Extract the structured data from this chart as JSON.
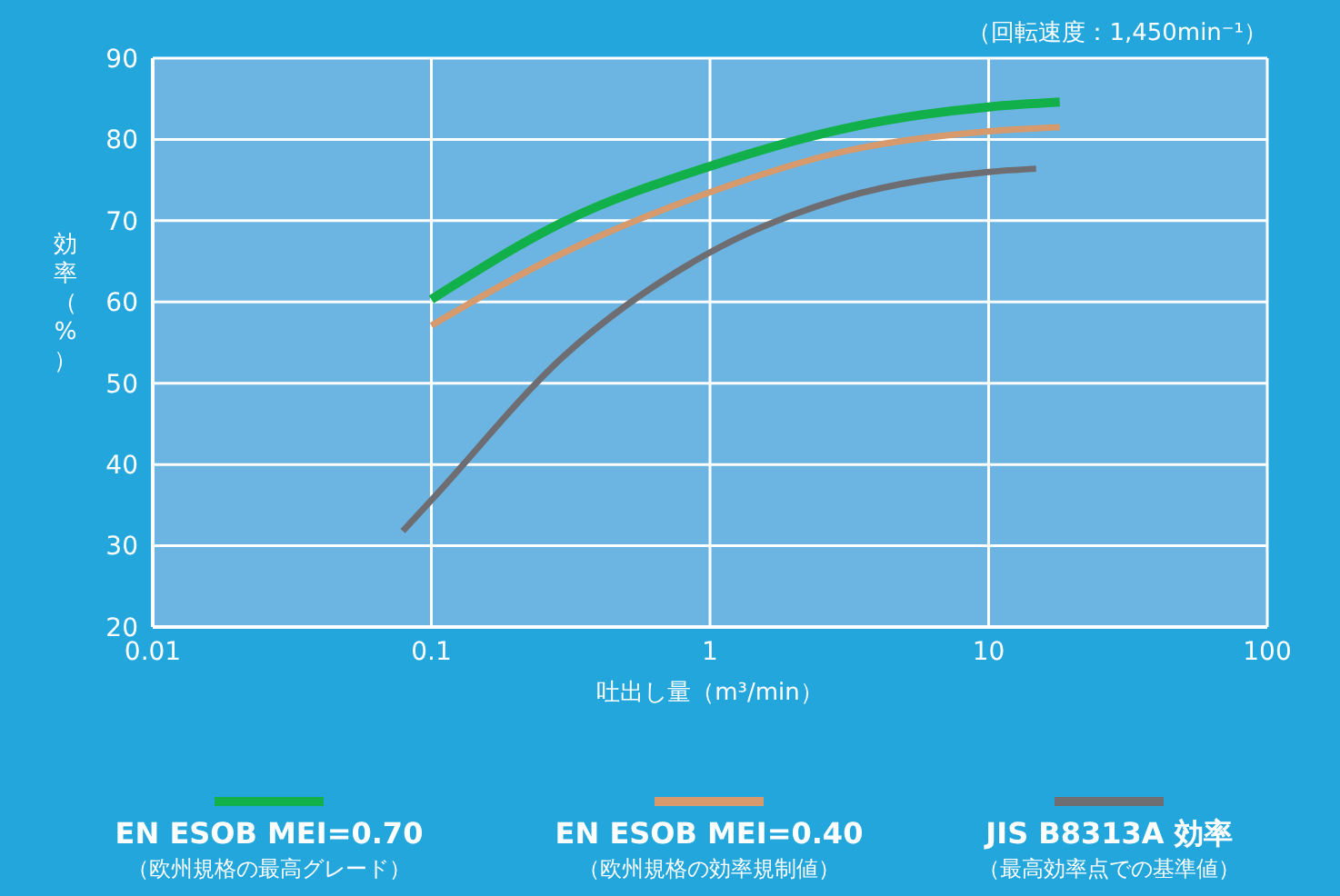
{
  "chart_data": {
    "type": "line",
    "subtitle": "（回転速度：1,450min⁻¹）",
    "xlabel": "吐出し量（m³/min）",
    "ylabel": "効率（%）",
    "log": "x",
    "xlim": [
      0.01,
      100
    ],
    "xticks": [
      0.01,
      0.1,
      1,
      10,
      100
    ],
    "ylim": [
      20,
      90
    ],
    "yticks": [
      20,
      30,
      40,
      50,
      60,
      70,
      80,
      90
    ],
    "grid": true,
    "legend": "bottom",
    "line_style": "solid",
    "marker": "none",
    "series": [
      {
        "name": "EN ESOB MEI=0.70（欧州規格の最高グレード）",
        "color": "#12b04a",
        "x": [
          0.1,
          0.3,
          1,
          3,
          10,
          18
        ],
        "values": [
          60.3,
          69.9,
          76.7,
          81.3,
          84.0,
          84.6
        ]
      },
      {
        "name": "EN ESOB MEI=0.40（欧州規格の効率規制値）",
        "color": "#d69a6c",
        "x": [
          0.1,
          0.3,
          1,
          3,
          10,
          18
        ],
        "values": [
          57.1,
          66.1,
          73.5,
          78.5,
          81.0,
          81.5
        ]
      },
      {
        "name": "JIS B8313A 効率（最高効率点での基準値）",
        "color": "#6e6e72",
        "x": [
          0.079,
          0.1,
          0.3,
          1,
          3,
          10,
          14.8
        ],
        "values": [
          31.8,
          35.6,
          53.4,
          66.1,
          72.8,
          76.0,
          76.4
        ]
      }
    ]
  }
}
